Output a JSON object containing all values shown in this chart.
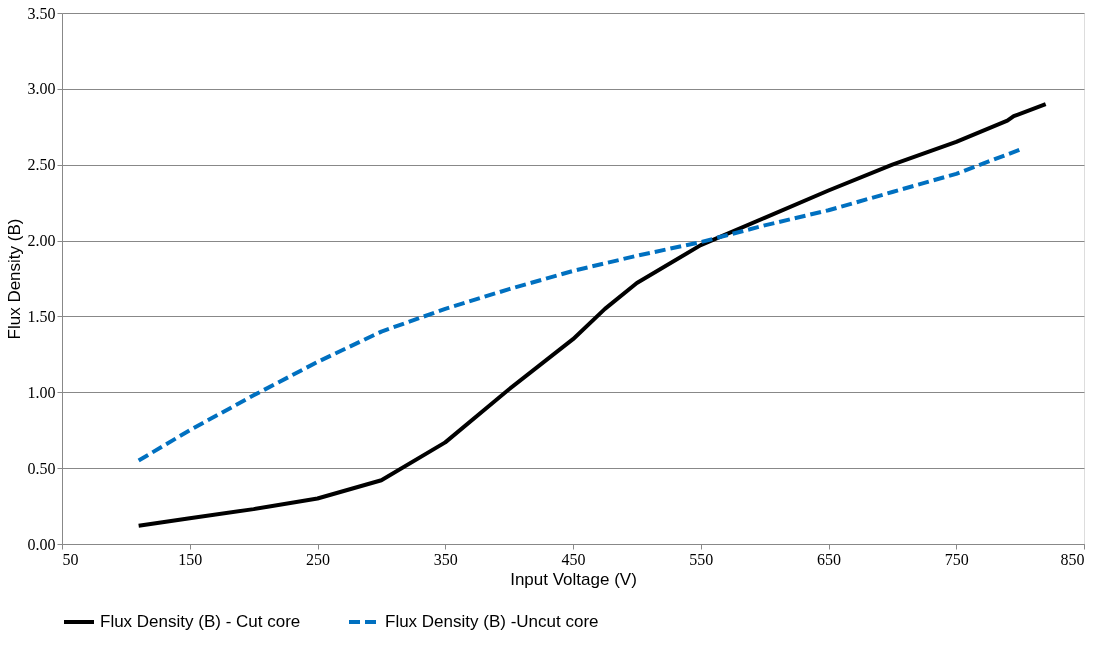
{
  "chart_data": {
    "type": "line",
    "xlabel": "Input Voltage (V)",
    "ylabel": "Flux Density (B)",
    "xlim": [
      50,
      850
    ],
    "xticks": [
      50,
      150,
      250,
      350,
      450,
      550,
      650,
      750,
      850
    ],
    "ylim": [
      0,
      3.5
    ],
    "yticks": [
      {
        "value": 0,
        "label": "0.00"
      },
      {
        "value": 0.5,
        "label": "0.50"
      },
      {
        "value": 1,
        "label": "1.00"
      },
      {
        "value": 1.5,
        "label": "1.50"
      },
      {
        "value": 2,
        "label": "2.00"
      },
      {
        "value": 2.5,
        "label": "2.50"
      },
      {
        "value": 3,
        "label": "3.00"
      },
      {
        "value": 3.5,
        "label": "3.50"
      }
    ],
    "grid": "y",
    "legend": "bottom",
    "marker": "none",
    "series": [
      {
        "name": "Flux Density (B) - Cut core",
        "color": "#000000",
        "line_style": "solid",
        "x": [
          110,
          150,
          200,
          250,
          300,
          350,
          400,
          450,
          475,
          500,
          550,
          600,
          650,
          700,
          750,
          790,
          795,
          820
        ],
        "values": [
          0.12,
          0.17,
          0.23,
          0.3,
          0.42,
          0.67,
          1.02,
          1.35,
          1.55,
          1.72,
          1.97,
          2.15,
          2.33,
          2.5,
          2.65,
          2.79,
          2.82,
          2.9
        ]
      },
      {
        "name": "Flux Density (B) -Uncut core",
        "color": "#0070c0",
        "line_style": "dashed",
        "x": [
          110,
          150,
          200,
          250,
          300,
          350,
          400,
          450,
          500,
          550,
          600,
          650,
          700,
          750,
          800
        ],
        "values": [
          0.55,
          0.75,
          0.98,
          1.2,
          1.4,
          1.55,
          1.68,
          1.8,
          1.9,
          1.99,
          2.1,
          2.2,
          2.32,
          2.44,
          2.6
        ]
      }
    ]
  }
}
